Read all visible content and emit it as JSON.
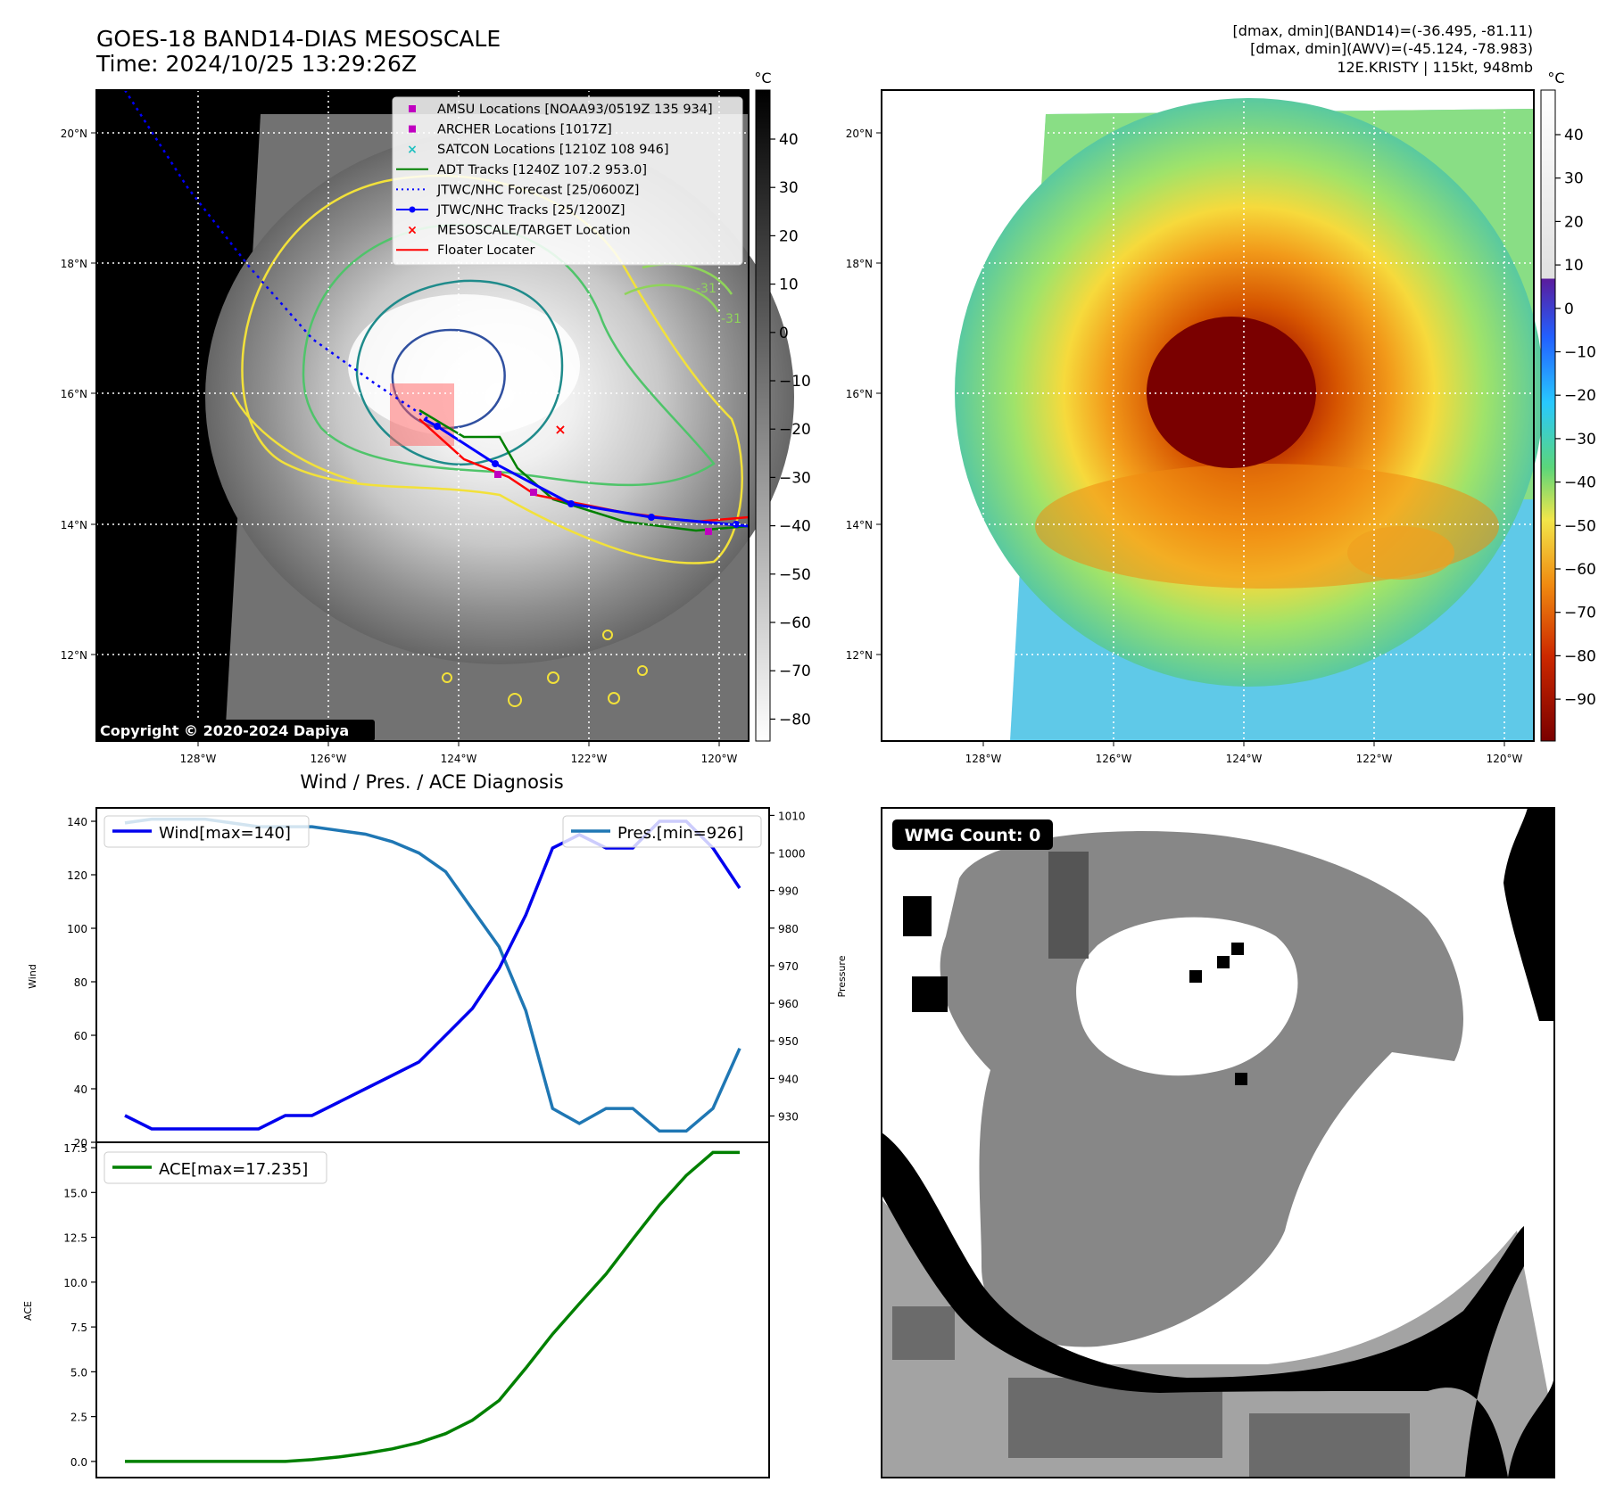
{
  "header": {
    "title_line1": "GOES-18 BAND14-DIAS MESOSCALE",
    "title_line2": "Time: 2024/10/25 13:29:26Z",
    "info_line1": "[dmax, dmin](BAND14)=(-36.495, -81.11)",
    "info_line2": "[dmax, dmin](AWV)=(-45.124, -78.983)",
    "info_line3": "12E.KRISTY | 115kt, 948mb"
  },
  "map_axes": {
    "lat_labels": [
      "20°N",
      "18°N",
      "16°N",
      "14°N",
      "12°N"
    ],
    "lon_labels": [
      "128°W",
      "126°W",
      "124°W",
      "122°W",
      "120°W"
    ]
  },
  "ir_panel": {
    "copyright": "Copyright © 2020-2024 Dapiya",
    "colorbar_unit": "°C",
    "colorbar_ticks": [
      "40",
      "30",
      "20",
      "10",
      "0",
      "−10",
      "−20",
      "−30",
      "−40",
      "−50",
      "−60",
      "−70",
      "−80"
    ],
    "contour_labels": [
      "-31",
      "-31"
    ],
    "legend": [
      {
        "label": "AMSU Locations [NOAA93/0519Z 135 934]",
        "color": "#c000c0",
        "marker": "square"
      },
      {
        "label": "ARCHER Locations [1017Z]",
        "color": "#c000c0",
        "marker": "square"
      },
      {
        "label": "SATCON Locations [1210Z 108 946]",
        "color": "#20c0c0",
        "marker": "x"
      },
      {
        "label": "ADT Tracks [1240Z 107.2 953.0]",
        "color": "#008000",
        "marker": "line"
      },
      {
        "label": "JTWC/NHC Forecast [25/0600Z]",
        "color": "#0000ff",
        "marker": "dotted"
      },
      {
        "label": "JTWC/NHC Tracks [25/1200Z]",
        "color": "#0000ff",
        "marker": "line-dot"
      },
      {
        "label": "MESOSCALE/TARGET Location",
        "color": "#ff0000",
        "marker": "x"
      },
      {
        "label": "Floater Locater",
        "color": "#ff0000",
        "marker": "line"
      }
    ]
  },
  "awv_panel": {
    "colorbar_unit": "°C",
    "colorbar_ticks": [
      "40",
      "30",
      "20",
      "10",
      "0",
      "−10",
      "−20",
      "−30",
      "−40",
      "−50",
      "−60",
      "−70",
      "−80",
      "−90"
    ]
  },
  "diagnosis": {
    "title": "Wind / Pres. / ACE Diagnosis",
    "wind_ylabel": "Wind",
    "pressure_ylabel": "Pressure",
    "ace_ylabel": "ACE",
    "wind_legend": "Wind[max=140]",
    "pressure_legend": "Pres.[min=926]",
    "ace_legend": "ACE[max=17.235]"
  },
  "wmg_panel": {
    "label": "WMG Count: 0"
  },
  "colors": {
    "wind": "#0000ee",
    "pressure": "#1f77b4",
    "ace": "#008000",
    "legend_bg": "#ffffff"
  },
  "chart_data": [
    {
      "type": "line",
      "name": "wind",
      "x": [
        0,
        1,
        2,
        3,
        4,
        5,
        6,
        7,
        8,
        9,
        10,
        11,
        12,
        13,
        14,
        15,
        16,
        17,
        18,
        19,
        20,
        21,
        22,
        23
      ],
      "values": [
        30,
        25,
        25,
        25,
        25,
        25,
        30,
        30,
        35,
        40,
        45,
        50,
        60,
        70,
        85,
        105,
        130,
        135,
        130,
        130,
        140,
        140,
        130,
        115
      ],
      "ylim": [
        20,
        145
      ],
      "yticks": [
        20,
        40,
        60,
        80,
        100,
        120,
        140
      ]
    },
    {
      "type": "line",
      "name": "pressure",
      "x": [
        0,
        1,
        2,
        3,
        4,
        5,
        6,
        7,
        8,
        9,
        10,
        11,
        12,
        13,
        14,
        15,
        16,
        17,
        18,
        19,
        20,
        21,
        22,
        23
      ],
      "values": [
        1008,
        1009,
        1009,
        1009,
        1008,
        1007,
        1007,
        1007,
        1006,
        1005,
        1003,
        1000,
        995,
        985,
        975,
        958,
        932,
        928,
        932,
        932,
        926,
        926,
        932,
        948
      ],
      "ylim": [
        923,
        1012
      ],
      "yticks": [
        930,
        940,
        950,
        960,
        970,
        980,
        990,
        1000,
        1010
      ]
    },
    {
      "type": "line",
      "name": "ace",
      "x": [
        0,
        1,
        2,
        3,
        4,
        5,
        6,
        7,
        8,
        9,
        10,
        11,
        12,
        13,
        14,
        15,
        16,
        17,
        18,
        19,
        20,
        21,
        22,
        23
      ],
      "values": [
        0,
        0,
        0,
        0,
        0,
        0,
        0,
        0.1,
        0.25,
        0.45,
        0.7,
        1.05,
        1.55,
        2.3,
        3.4,
        5.2,
        7.1,
        8.8,
        10.45,
        12.4,
        14.3,
        15.95,
        17.235,
        17.235
      ],
      "ylim": [
        -0.9,
        17.8
      ],
      "yticks": [
        0.0,
        2.5,
        5.0,
        7.5,
        10.0,
        12.5,
        15.0,
        17.5
      ],
      "ytick_labels": [
        "0.0",
        "2.5",
        "5.0",
        "7.5",
        "10.0",
        "12.5",
        "15.0",
        "17.5"
      ]
    }
  ]
}
